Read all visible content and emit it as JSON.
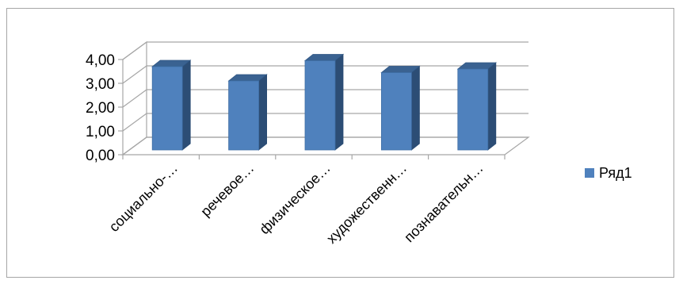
{
  "chart_data": {
    "type": "bar",
    "style": "3d-column",
    "categories": [
      "социально-…",
      "речевое…",
      "физическое…",
      "художественн…",
      "познавательн…"
    ],
    "series": [
      {
        "name": "Ряд1",
        "color": "#4f81bd",
        "values": [
          3.5,
          2.9,
          3.75,
          3.25,
          3.4
        ]
      }
    ],
    "yticks": [
      "0,00",
      "1,00",
      "2,00",
      "3,00",
      "4,00"
    ],
    "ylim": [
      0,
      4
    ],
    "grid": true,
    "legend_position": "right",
    "title": "",
    "xlabel": "",
    "ylabel": ""
  }
}
